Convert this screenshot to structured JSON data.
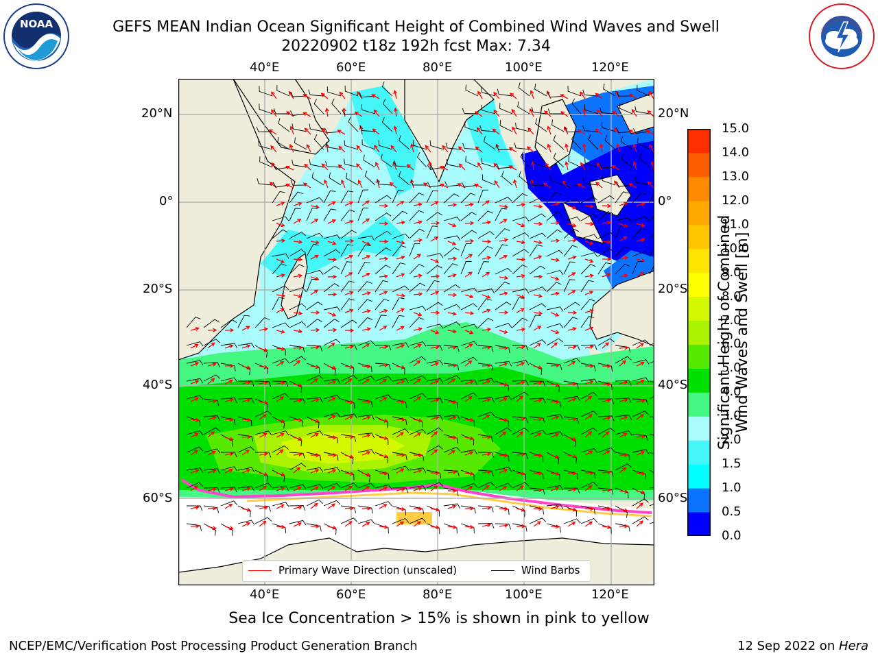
{
  "title": {
    "line1": "GEFS MEAN Indian Ocean Significant Height of Combined Wind Waves and Swell",
    "line2": "20220902 t18z 192h fcst   Max: 7.34"
  },
  "logos": {
    "left": {
      "text": "NOAA",
      "ring_text": "NATIONAL OCEANIC AND ATMOSPHERIC ADMINISTRATION · U.S. DEPARTMENT OF COMMERCE"
    },
    "right": {
      "text": "NATIONAL WEATHER SERVICE"
    }
  },
  "map": {
    "lon_ticks": [
      "40°E",
      "60°E",
      "80°E",
      "100°E",
      "120°E"
    ],
    "lat_ticks": [
      "20°N",
      "0°",
      "20°S",
      "40°S",
      "60°S"
    ],
    "lon_range": [
      20,
      130
    ],
    "lat_range": [
      -70,
      27
    ],
    "colors": {
      "land": "#efeedd",
      "ice_free": "#ffffff",
      "grid": "#b0b0b0",
      "wave_arrow": "#ff0000",
      "barb": "#000000"
    }
  },
  "legend": {
    "wave_label": "Primary Wave Direction (unscaled)",
    "barb_label": "Wind Barbs"
  },
  "colorbar": {
    "label_line1": "Significant Height of Combined",
    "label_line2": "Wind Waves and Swell [m]",
    "ticks": [
      "0.0",
      "0.5",
      "1.0",
      "1.5",
      "2.0",
      "3.0",
      "4.0",
      "5.0",
      "6.0",
      "7.0",
      "8.0",
      "9.0",
      "10.0",
      "11.0",
      "12.0",
      "13.0",
      "14.0",
      "15.0"
    ],
    "colors": [
      "#0000ff",
      "#0a73ff",
      "#00ffff",
      "#44f6f8",
      "#aafcfc",
      "#44f883",
      "#00e000",
      "#55ea00",
      "#aaf200",
      "#d4f800",
      "#ffff00",
      "#ffe400",
      "#ffc600",
      "#ffa800",
      "#ff8a00",
      "#ff5e00",
      "#ff2f00"
    ]
  },
  "caption": "Sea Ice Concentration > 15% is shown in pink to yellow",
  "footer": {
    "left": "NCEP/EMC/Verification Post Processing Product Generation Branch",
    "right_prefix": "12 Sep 2022 on ",
    "right_host": "Hera"
  }
}
